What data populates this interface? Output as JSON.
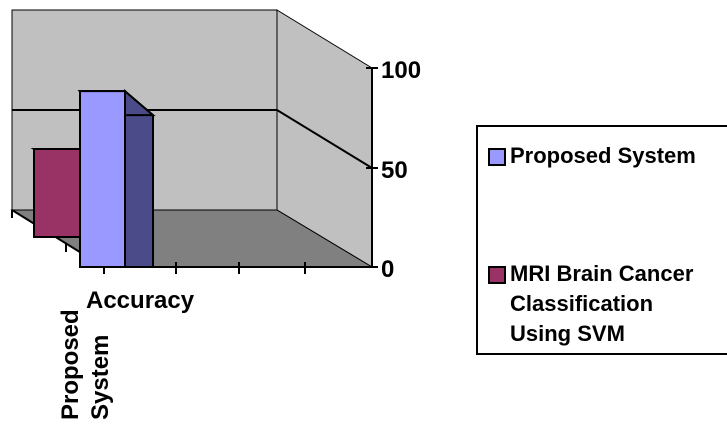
{
  "chart_data": {
    "type": "bar",
    "style": "3d-clustered-column",
    "categories": [
      "Accuracy"
    ],
    "series": [
      {
        "name": "MRI Brain Cancer\nClassification\nUsing SVM",
        "values": [
          65
        ],
        "color": "#993366"
      },
      {
        "name": "Proposed System",
        "values": [
          93
        ],
        "color": "#9999ff"
      }
    ],
    "yticks": [
      0,
      50,
      100
    ],
    "ylim": [
      0,
      100
    ],
    "x_tick_labels": [
      "Accuracy"
    ],
    "extra_axis_label": "Proposed\nSystem",
    "grid": true,
    "legend_position": "right",
    "colors": {
      "wall": "#c0c0c0",
      "floor": "#808080",
      "proposed_side": "#4b4b8a",
      "mri_side": "#5c1d3a"
    }
  }
}
